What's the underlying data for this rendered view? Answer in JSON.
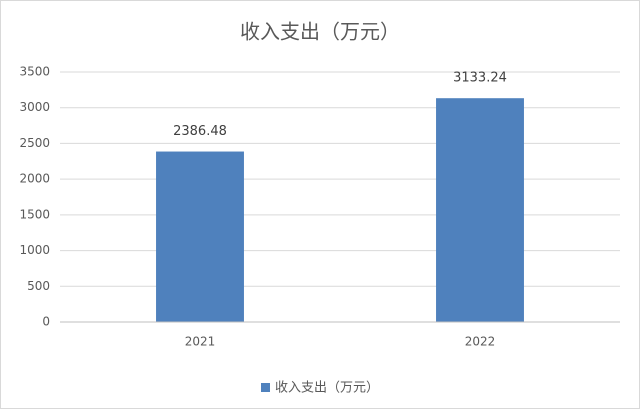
{
  "chart_data": {
    "type": "bar",
    "title": "收入支出（万元）",
    "categories": [
      "2021",
      "2022"
    ],
    "series": [
      {
        "name": "收入支出（万元）",
        "color": "#4f81bd",
        "values": [
          2386.48,
          3133.24
        ]
      }
    ],
    "ylim": [
      0,
      3500
    ],
    "yticks": [
      0,
      500,
      1000,
      1500,
      2000,
      2500,
      3000,
      3500
    ],
    "grid": true,
    "legend": "bottom"
  }
}
